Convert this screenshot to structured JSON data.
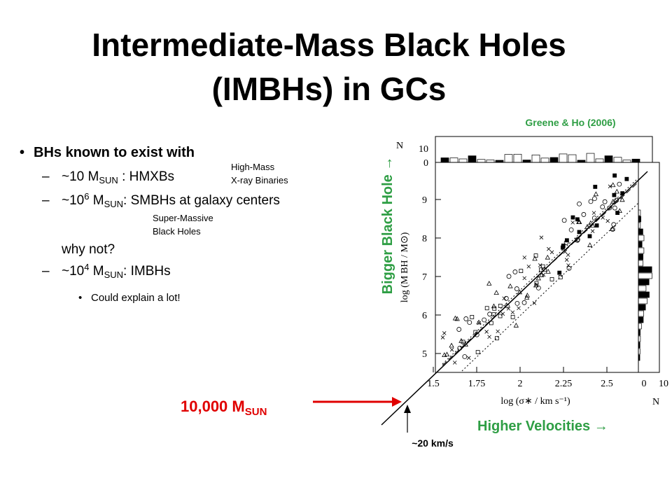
{
  "title": [
    "Intermediate-Mass Black Holes",
    "(IMBHs) in GCs"
  ],
  "bullets": {
    "main": "BHs known to exist with",
    "items": [
      {
        "prefix": "~10 M",
        "sub": "SUN",
        "suffix": " :  HMXBs",
        "note": [
          "High-Mass",
          "X-ray Binaries"
        ]
      },
      {
        "prefix": "~10",
        "sup": "6",
        "mid": " M",
        "sub": "SUN",
        "suffix": ":  SMBHs at galaxy centers",
        "note": [
          "Super-Massive",
          "Black Holes"
        ]
      }
    ],
    "question": "why not?",
    "last": {
      "prefix": "~10",
      "sup": "4",
      "mid": " M",
      "sub": "SUN",
      "suffix": ":  IMBHs"
    },
    "subitem": "Could explain a lot!"
  },
  "figure": {
    "citation": "Greene & Ho (2006)",
    "y_annotation": "Bigger Black Hole →",
    "x_annotation": "Higher Velocities  →",
    "mass_label": {
      "text": "10,000 M",
      "sub": "SUN"
    },
    "velocity_label": "~20 km/s",
    "x_axis_label": "log (σ∗ / km s⁻¹)",
    "y_axis_label": "log (M BH / M⊙)",
    "x_ticks": [
      "1.5",
      "1.75",
      "2",
      "2.25",
      "2.5"
    ],
    "y_ticks": [
      "5",
      "6",
      "7",
      "8",
      "9"
    ],
    "top_hist_ticks": [
      "10",
      "0"
    ],
    "right_hist_ticks": [
      "0",
      "10"
    ],
    "hist_label": "N"
  }
}
